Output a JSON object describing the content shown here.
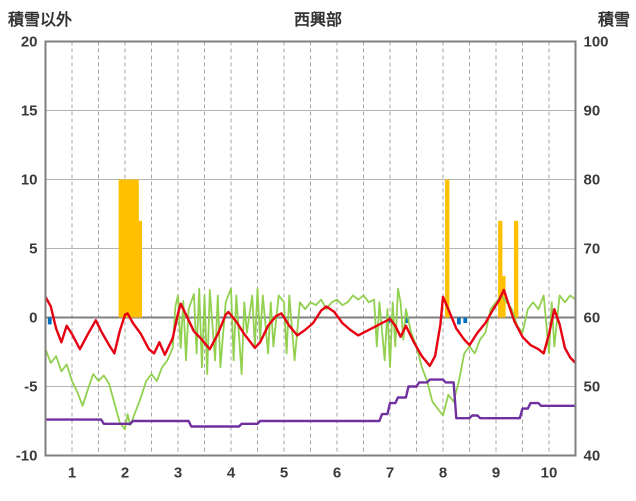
{
  "title": "西興部",
  "chart_data": {
    "type": "line",
    "title": "西興部",
    "left_axis": {
      "label": "積雪以外",
      "min": -10,
      "max": 20,
      "ticks": [
        20,
        15,
        10,
        5,
        0,
        -5,
        -10
      ]
    },
    "right_axis": {
      "label": "積雪",
      "min": 40,
      "max": 100,
      "ticks": [
        100,
        90,
        80,
        70,
        60,
        50,
        40
      ]
    },
    "x_axis": {
      "min": 0.5,
      "max": 10.5,
      "ticks": [
        1,
        2,
        3,
        4,
        5,
        6,
        7,
        8,
        9,
        10
      ],
      "grid_step": 0.5
    },
    "grid": {
      "horizontal": "solid",
      "vertical": "dashed",
      "zero_line": true
    },
    "colors": {
      "red": "#e60012",
      "green": "#92d050",
      "purple": "#7030a0",
      "orange": "#ffc000",
      "blue": "#0070c0",
      "grid": "#b3b3b3",
      "border": "#7f7f7f",
      "text": "#3a3a3a"
    },
    "series": [
      {
        "name": "precipitation-bars",
        "type": "bar",
        "axis": "left",
        "color": "#ffc000",
        "bar_width": 0.07,
        "points": [
          [
            1.92,
            10
          ],
          [
            1.98,
            10
          ],
          [
            2.04,
            10
          ],
          [
            2.1,
            10
          ],
          [
            2.16,
            10
          ],
          [
            2.22,
            10
          ],
          [
            2.28,
            7
          ],
          [
            8.08,
            10
          ],
          [
            9.08,
            7
          ],
          [
            9.14,
            3
          ],
          [
            9.38,
            7
          ]
        ]
      },
      {
        "name": "blue-marks",
        "type": "bar",
        "axis": "left",
        "color": "#0070c0",
        "bar_width": 0.06,
        "points": [
          [
            0.58,
            -0.5
          ],
          [
            6.97,
            -0.4
          ],
          [
            7.33,
            -0.4
          ],
          [
            8.3,
            -0.5
          ],
          [
            8.42,
            -0.4
          ]
        ]
      },
      {
        "name": "green-line",
        "type": "line",
        "axis": "left",
        "color": "#92d050",
        "width": 1.8,
        "points": [
          [
            0.5,
            -2.3
          ],
          [
            0.6,
            -3.3
          ],
          [
            0.7,
            -2.8
          ],
          [
            0.8,
            -3.9
          ],
          [
            0.9,
            -3.4
          ],
          [
            1.0,
            -4.6
          ],
          [
            1.1,
            -5.4
          ],
          [
            1.2,
            -6.4
          ],
          [
            1.3,
            -5.2
          ],
          [
            1.4,
            -4.1
          ],
          [
            1.5,
            -4.6
          ],
          [
            1.6,
            -4.2
          ],
          [
            1.7,
            -4.8
          ],
          [
            1.8,
            -6.2
          ],
          [
            1.9,
            -7.6
          ],
          [
            2.0,
            -8.1
          ],
          [
            2.05,
            -7.0
          ],
          [
            2.1,
            -7.8
          ],
          [
            2.2,
            -6.8
          ],
          [
            2.3,
            -5.8
          ],
          [
            2.4,
            -4.6
          ],
          [
            2.5,
            -4.1
          ],
          [
            2.6,
            -4.6
          ],
          [
            2.7,
            -3.6
          ],
          [
            2.8,
            -3.1
          ],
          [
            2.9,
            -2.2
          ],
          [
            2.95,
            0.8
          ],
          [
            3.0,
            1.6
          ],
          [
            3.05,
            -2.2
          ],
          [
            3.1,
            1.2
          ],
          [
            3.15,
            -3.1
          ],
          [
            3.2,
            0.6
          ],
          [
            3.3,
            1.7
          ],
          [
            3.35,
            -2.6
          ],
          [
            3.4,
            2.1
          ],
          [
            3.45,
            -3.6
          ],
          [
            3.5,
            1.6
          ],
          [
            3.55,
            -4.1
          ],
          [
            3.6,
            2.0
          ],
          [
            3.7,
            -3.1
          ],
          [
            3.75,
            1.6
          ],
          [
            3.8,
            -3.6
          ],
          [
            3.9,
            1.1
          ],
          [
            4.0,
            2.1
          ],
          [
            4.05,
            -3.1
          ],
          [
            4.1,
            1.6
          ],
          [
            4.2,
            -4.1
          ],
          [
            4.25,
            1.1
          ],
          [
            4.3,
            -1.1
          ],
          [
            4.4,
            1.6
          ],
          [
            4.45,
            -2.1
          ],
          [
            4.5,
            2.1
          ],
          [
            4.55,
            -1.6
          ],
          [
            4.6,
            1.6
          ],
          [
            4.7,
            -2.6
          ],
          [
            4.75,
            1.1
          ],
          [
            4.8,
            -2.1
          ],
          [
            4.9,
            1.6
          ],
          [
            5.0,
            1.1
          ],
          [
            5.05,
            -2.6
          ],
          [
            5.1,
            1.6
          ],
          [
            5.2,
            -3.1
          ],
          [
            5.3,
            1.1
          ],
          [
            5.4,
            0.6
          ],
          [
            5.5,
            1.1
          ],
          [
            5.6,
            0.9
          ],
          [
            5.7,
            1.3
          ],
          [
            5.8,
            0.6
          ],
          [
            5.9,
            1.1
          ],
          [
            6.0,
            1.3
          ],
          [
            6.1,
            0.9
          ],
          [
            6.2,
            1.1
          ],
          [
            6.3,
            1.6
          ],
          [
            6.4,
            1.3
          ],
          [
            6.5,
            1.6
          ],
          [
            6.6,
            1.1
          ],
          [
            6.7,
            1.3
          ],
          [
            6.75,
            -2.1
          ],
          [
            6.8,
            1.1
          ],
          [
            6.9,
            -3.1
          ],
          [
            6.95,
            0.6
          ],
          [
            7.0,
            -3.6
          ],
          [
            7.05,
            1.1
          ],
          [
            7.1,
            -2.1
          ],
          [
            7.15,
            2.1
          ],
          [
            7.2,
            1.1
          ],
          [
            7.25,
            -1.6
          ],
          [
            7.3,
            0.6
          ],
          [
            7.4,
            -1.1
          ],
          [
            7.5,
            -2.1
          ],
          [
            7.6,
            -3.6
          ],
          [
            7.7,
            -4.6
          ],
          [
            7.8,
            -6.1
          ],
          [
            7.9,
            -6.6
          ],
          [
            8.0,
            -7.1
          ],
          [
            8.1,
            -5.6
          ],
          [
            8.2,
            -6.1
          ],
          [
            8.3,
            -4.6
          ],
          [
            8.4,
            -2.6
          ],
          [
            8.5,
            -2.1
          ],
          [
            8.6,
            -2.6
          ],
          [
            8.7,
            -1.6
          ],
          [
            8.8,
            -1.1
          ],
          [
            8.9,
            0.6
          ],
          [
            9.0,
            1.1
          ],
          [
            9.1,
            1.6
          ],
          [
            9.2,
            1.1
          ],
          [
            9.3,
            0.6
          ],
          [
            9.4,
            -0.6
          ],
          [
            9.5,
            -1.1
          ],
          [
            9.6,
            0.6
          ],
          [
            9.7,
            1.1
          ],
          [
            9.8,
            0.6
          ],
          [
            9.9,
            1.6
          ],
          [
            10.0,
            -2.6
          ],
          [
            10.05,
            1.1
          ],
          [
            10.1,
            -2.1
          ],
          [
            10.2,
            1.6
          ],
          [
            10.3,
            1.1
          ],
          [
            10.4,
            1.6
          ],
          [
            10.5,
            1.3
          ]
        ]
      },
      {
        "name": "red-line",
        "type": "line",
        "axis": "left",
        "color": "#e60012",
        "width": 2.4,
        "points": [
          [
            0.5,
            1.5
          ],
          [
            0.6,
            0.8
          ],
          [
            0.7,
            -0.8
          ],
          [
            0.8,
            -1.8
          ],
          [
            0.9,
            -0.6
          ],
          [
            1.0,
            -1.2
          ],
          [
            1.15,
            -2.3
          ],
          [
            1.3,
            -1.2
          ],
          [
            1.45,
            -0.2
          ],
          [
            1.55,
            -1.0
          ],
          [
            1.7,
            -2.0
          ],
          [
            1.8,
            -2.6
          ],
          [
            1.9,
            -1.0
          ],
          [
            2.0,
            0.2
          ],
          [
            2.05,
            0.3
          ],
          [
            2.15,
            -0.4
          ],
          [
            2.3,
            -1.2
          ],
          [
            2.45,
            -2.3
          ],
          [
            2.55,
            -2.6
          ],
          [
            2.65,
            -1.8
          ],
          [
            2.75,
            -2.7
          ],
          [
            2.9,
            -1.5
          ],
          [
            3.0,
            0.3
          ],
          [
            3.05,
            1.0
          ],
          [
            3.15,
            0.2
          ],
          [
            3.3,
            -1.0
          ],
          [
            3.45,
            -1.6
          ],
          [
            3.6,
            -2.3
          ],
          [
            3.75,
            -1.2
          ],
          [
            3.9,
            0.2
          ],
          [
            3.95,
            0.4
          ],
          [
            4.1,
            -0.3
          ],
          [
            4.25,
            -1.2
          ],
          [
            4.45,
            -2.2
          ],
          [
            4.55,
            -1.8
          ],
          [
            4.7,
            -0.6
          ],
          [
            4.85,
            0.1
          ],
          [
            4.95,
            0.3
          ],
          [
            5.1,
            -0.6
          ],
          [
            5.25,
            -1.3
          ],
          [
            5.4,
            -0.9
          ],
          [
            5.55,
            -0.4
          ],
          [
            5.7,
            0.5
          ],
          [
            5.8,
            0.8
          ],
          [
            5.95,
            0.4
          ],
          [
            6.1,
            -0.4
          ],
          [
            6.25,
            -0.9
          ],
          [
            6.4,
            -1.3
          ],
          [
            6.55,
            -1.0
          ],
          [
            6.7,
            -0.7
          ],
          [
            6.85,
            -0.4
          ],
          [
            7.0,
            -0.1
          ],
          [
            7.1,
            -0.6
          ],
          [
            7.2,
            -1.4
          ],
          [
            7.3,
            -0.6
          ],
          [
            7.45,
            -1.8
          ],
          [
            7.6,
            -2.8
          ],
          [
            7.75,
            -3.5
          ],
          [
            7.85,
            -2.8
          ],
          [
            7.95,
            -0.5
          ],
          [
            8.0,
            1.5
          ],
          [
            8.1,
            0.6
          ],
          [
            8.25,
            -0.8
          ],
          [
            8.4,
            -1.6
          ],
          [
            8.5,
            -2.0
          ],
          [
            8.65,
            -1.1
          ],
          [
            8.8,
            -0.4
          ],
          [
            8.95,
            0.6
          ],
          [
            9.05,
            1.2
          ],
          [
            9.15,
            2.0
          ],
          [
            9.25,
            0.8
          ],
          [
            9.35,
            -0.3
          ],
          [
            9.5,
            -1.4
          ],
          [
            9.65,
            -2.0
          ],
          [
            9.8,
            -2.3
          ],
          [
            9.9,
            -2.6
          ],
          [
            10.0,
            -1.2
          ],
          [
            10.1,
            0.6
          ],
          [
            10.2,
            -0.5
          ],
          [
            10.3,
            -2.2
          ],
          [
            10.4,
            -2.9
          ],
          [
            10.5,
            -3.3
          ]
        ]
      },
      {
        "name": "purple-line",
        "type": "line",
        "axis": "right",
        "color": "#7030a0",
        "width": 2.4,
        "points": [
          [
            0.5,
            45.2
          ],
          [
            1.55,
            45.2
          ],
          [
            1.6,
            44.6
          ],
          [
            2.1,
            44.6
          ],
          [
            2.15,
            45.0
          ],
          [
            3.2,
            45.0
          ],
          [
            3.25,
            44.2
          ],
          [
            4.15,
            44.2
          ],
          [
            4.2,
            44.6
          ],
          [
            4.5,
            44.6
          ],
          [
            4.55,
            45.0
          ],
          [
            6.8,
            45.0
          ],
          [
            6.85,
            46.0
          ],
          [
            6.95,
            46.0
          ],
          [
            7.0,
            47.6
          ],
          [
            7.1,
            47.6
          ],
          [
            7.15,
            48.4
          ],
          [
            7.3,
            48.4
          ],
          [
            7.35,
            50.0
          ],
          [
            7.5,
            50.0
          ],
          [
            7.55,
            50.6
          ],
          [
            7.7,
            50.6
          ],
          [
            7.75,
            51.0
          ],
          [
            8.0,
            51.0
          ],
          [
            8.05,
            50.6
          ],
          [
            8.2,
            50.6
          ],
          [
            8.25,
            45.4
          ],
          [
            8.5,
            45.4
          ],
          [
            8.55,
            45.8
          ],
          [
            8.65,
            45.8
          ],
          [
            8.7,
            45.4
          ],
          [
            9.45,
            45.4
          ],
          [
            9.5,
            46.8
          ],
          [
            9.6,
            46.8
          ],
          [
            9.65,
            47.6
          ],
          [
            9.8,
            47.6
          ],
          [
            9.85,
            47.2
          ],
          [
            10.5,
            47.2
          ]
        ]
      }
    ]
  }
}
